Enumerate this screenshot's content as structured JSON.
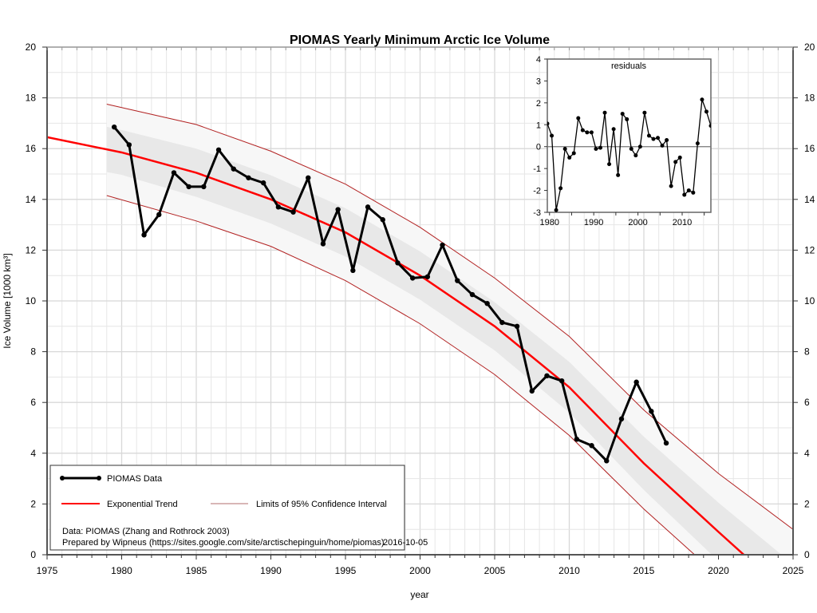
{
  "chart_data": {
    "type": "line",
    "title": "PIOMAS Yearly Minimum Arctic Ice Volume",
    "xlabel": "year",
    "ylabel": "Ice Volume [1000 km³]",
    "xlim": [
      1975,
      2025
    ],
    "ylim": [
      0,
      20
    ],
    "xticks": [
      1975,
      1980,
      1985,
      1990,
      1995,
      2000,
      2005,
      2010,
      2015,
      2020,
      2025
    ],
    "yticks": [
      0,
      2,
      4,
      6,
      8,
      10,
      12,
      14,
      16,
      18,
      20
    ],
    "grid": true,
    "series": [
      {
        "name": "PIOMAS Data",
        "color": "#000000",
        "x": [
          1979,
          1980,
          1981,
          1982,
          1983,
          1984,
          1985,
          1986,
          1987,
          1988,
          1989,
          1990,
          1991,
          1992,
          1993,
          1994,
          1995,
          1996,
          1997,
          1998,
          1999,
          2000,
          2001,
          2002,
          2003,
          2004,
          2005,
          2006,
          2007,
          2008,
          2009,
          2010,
          2011,
          2012,
          2013,
          2014,
          2015,
          2016
        ],
        "y": [
          16.85,
          16.15,
          12.6,
          13.4,
          15.05,
          14.5,
          14.5,
          15.95,
          15.2,
          14.85,
          14.65,
          13.7,
          13.5,
          14.85,
          12.25,
          13.6,
          11.2,
          13.7,
          13.2,
          11.5,
          10.9,
          10.95,
          12.2,
          10.8,
          10.25,
          9.9,
          9.15,
          9.0,
          6.45,
          7.05,
          6.85,
          4.55,
          4.3,
          3.7,
          5.35,
          6.8,
          5.65,
          4.4
        ]
      },
      {
        "name": "Exponential Trend",
        "color": "#ff0000",
        "x": [
          1975,
          1980,
          1985,
          1990,
          1995,
          2000,
          2005,
          2010,
          2015,
          2020,
          2021.7
        ],
        "y": [
          16.45,
          15.85,
          15.05,
          14.0,
          12.7,
          11.0,
          9.0,
          6.6,
          3.6,
          0.9,
          0.0
        ]
      },
      {
        "name": "Limits of 95% Confidence Interval",
        "color": "#b22222",
        "upper": {
          "x": [
            1979,
            1985,
            1990,
            1995,
            2000,
            2005,
            2010,
            2015,
            2020,
            2025
          ],
          "y": [
            17.75,
            16.95,
            15.9,
            14.6,
            12.9,
            10.9,
            8.6,
            5.7,
            3.2,
            1.0
          ]
        },
        "lower": {
          "x": [
            1979,
            1985,
            1990,
            1995,
            2000,
            2005,
            2010,
            2015,
            2018.4
          ],
          "y": [
            14.15,
            13.15,
            12.15,
            10.8,
            9.1,
            7.1,
            4.7,
            1.8,
            0.0
          ]
        }
      }
    ],
    "inset": {
      "title": "residuals",
      "type": "line",
      "xlim": [
        1979.5,
        2016.5
      ],
      "ylim": [
        -3,
        4
      ],
      "xticks": [
        1980,
        1990,
        2000,
        2010
      ],
      "yticks": [
        -3,
        -2,
        -1,
        0,
        1,
        2,
        3,
        4
      ],
      "x": [
        1979,
        1980,
        1981,
        1982,
        1983,
        1984,
        1985,
        1986,
        1987,
        1988,
        1989,
        1990,
        1991,
        1992,
        1993,
        1994,
        1995,
        1996,
        1997,
        1998,
        1999,
        2000,
        2001,
        2002,
        2003,
        2004,
        2005,
        2006,
        2007,
        2008,
        2009,
        2010,
        2011,
        2012,
        2013,
        2014,
        2015,
        2016
      ],
      "y": [
        1.05,
        0.5,
        -2.9,
        -1.9,
        -0.1,
        -0.5,
        -0.3,
        1.3,
        0.75,
        0.65,
        0.65,
        -0.1,
        -0.05,
        1.55,
        -0.8,
        0.8,
        -1.3,
        1.5,
        1.25,
        -0.1,
        -0.4,
        0.0,
        1.55,
        0.5,
        0.35,
        0.4,
        0.05,
        0.3,
        -1.8,
        -0.7,
        -0.5,
        -2.2,
        -2.0,
        -2.1,
        0.15,
        2.15,
        1.6,
        0.95
      ]
    },
    "legend": {
      "placement": "bottom-left",
      "entries": [
        "PIOMAS Data",
        "Exponential Trend",
        "Limits of 95% Confidence Interval"
      ],
      "source_line": "Data: PIOMAS (Zhang and Rothrock 2003)",
      "credit_line": "Prepared by Wipneus (https://sites.google.com/site/arctischepinguin/home/piomas)",
      "date": "2016-10-05"
    }
  }
}
